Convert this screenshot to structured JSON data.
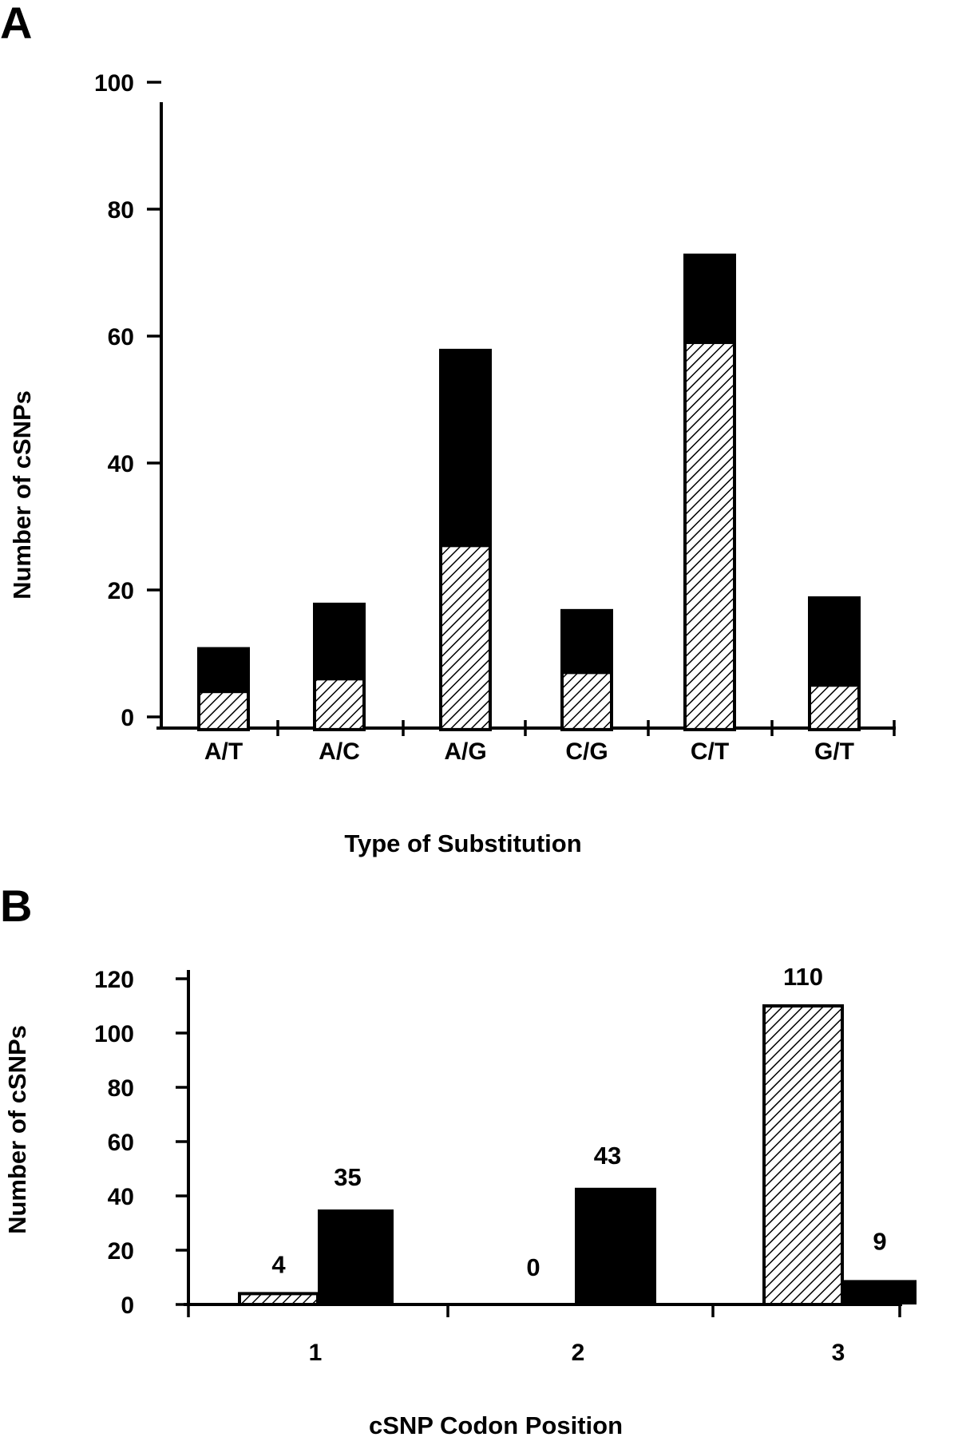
{
  "colors": {
    "ink": "#000000",
    "background": "#ffffff"
  },
  "chart_data": [
    {
      "panel": "A",
      "type": "bar",
      "stacked": true,
      "categories": [
        "A/T",
        "A/C",
        "A/G",
        "C/G",
        "C/T",
        "G/T"
      ],
      "series": [
        {
          "pattern": "hatched",
          "values": [
            4,
            6,
            27,
            7,
            59,
            5
          ]
        },
        {
          "pattern": "solid",
          "values": [
            7,
            12,
            31,
            10,
            14,
            14
          ]
        }
      ],
      "totals": [
        11,
        18,
        58,
        17,
        73,
        19
      ],
      "xlabel": "Type of Substitution",
      "ylabel": "Number of cSNPs",
      "ylim": [
        -2,
        100
      ],
      "yticks": [
        0,
        20,
        40,
        60,
        80,
        100
      ],
      "grid": false
    },
    {
      "panel": "B",
      "type": "bar",
      "stacked": false,
      "categories": [
        "1",
        "2",
        "3"
      ],
      "series": [
        {
          "pattern": "hatched",
          "values": [
            4,
            0,
            110
          ]
        },
        {
          "pattern": "solid",
          "values": [
            35,
            43,
            9
          ]
        }
      ],
      "data_labels": [
        [
          "4",
          "0",
          "110"
        ],
        [
          "35",
          "43",
          "9"
        ]
      ],
      "xlabel": "cSNP Codon Position",
      "ylabel": "Number of cSNPs",
      "ylim": [
        0,
        120
      ],
      "yticks": [
        0,
        20,
        40,
        60,
        80,
        100,
        120
      ],
      "grid": false
    }
  ]
}
